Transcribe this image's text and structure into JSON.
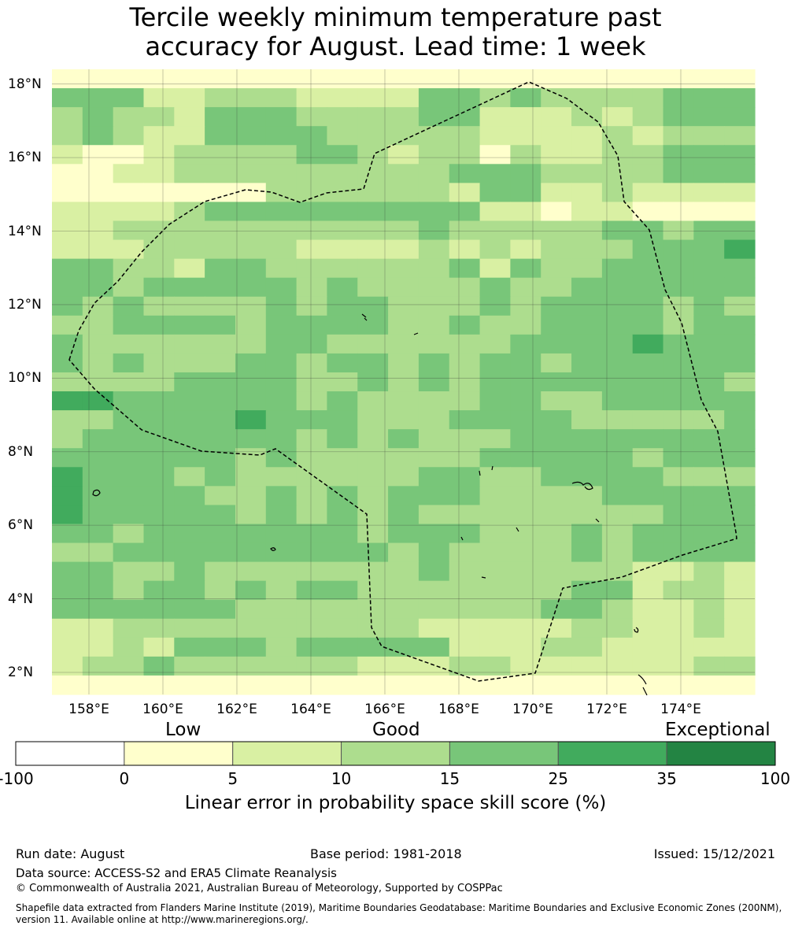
{
  "title": {
    "line1": "Tercile weekly minimum temperature past",
    "line2": "accuracy for August. Lead time: 1 week"
  },
  "map": {
    "lon_range": [
      157,
      176
    ],
    "lat_range": [
      1.4,
      18.4
    ],
    "lat_labels": [
      "18°N",
      "16°N",
      "14°N",
      "12°N",
      "10°N",
      "8°N",
      "6°N",
      "4°N",
      "2°N"
    ],
    "lat_values": [
      18,
      16,
      14,
      12,
      10,
      8,
      6,
      4,
      2
    ],
    "lon_labels": [
      "158°E",
      "160°E",
      "162°E",
      "164°E",
      "166°E",
      "168°E",
      "170°E",
      "172°E",
      "174°E"
    ],
    "lon_values": [
      158,
      160,
      162,
      164,
      166,
      168,
      170,
      172,
      174
    ],
    "grid_rows": [
      "00000000000000000000000",
      "33311222111133232222333",
      "23221333222233111212333",
      "23211333322222111121222",
      "10012222332122021122333",
      "00112222222223332222333",
      "00000002222221331121111",
      "11112333333333110110000",
      "11222222222232222233233",
      "11122222111121212223334",
      "33221332222223132233333",
      "33233333232222322333333",
      "32322223233222323333232",
      "22333323333223223333233",
      "32222223322222233334333",
      "32322233233232332333333",
      "22223333223232333333332",
      "44333333232222332233333",
      "22333343332223333222223",
      "23333333232322233333333",
      "33333323222222333332333",
      "43332322222233223333222",
      "43333223232333222233333",
      "43333323232322222222333",
      "33233333332333222323333",
      "22333333333232222323333",
      "33223222222232222221121",
      "33233232332222222331221",
      "33333322222222223321121",
      "11222222222211111221121",
      "11213332333331112211111",
      "12232222221112211111122",
      "00000000000000000000000"
    ],
    "colors": [
      "#ffffcc",
      "#d9f0a3",
      "#addd8e",
      "#78c679",
      "#41ab5d",
      "#238443"
    ]
  },
  "colorbar": {
    "category_low": "Low",
    "category_good": "Good",
    "category_exceptional": "Exceptional",
    "ticks": [
      "-100",
      "0",
      "5",
      "10",
      "15",
      "25",
      "35",
      "100"
    ],
    "bins": [
      "#ffffff",
      "#ffffcc",
      "#d9f0a3",
      "#addd8e",
      "#78c679",
      "#41ab5d",
      "#238443"
    ],
    "label": "Linear error in probability space skill score (%)"
  },
  "footer": {
    "run_date": "Run date: August",
    "base_period": "Base period: 1981-2018",
    "issued": "Issued: 15/12/2021",
    "data_source": "Data source: ACCESS-S2 and ERA5 Climate Reanalysis",
    "copyright": "© Commonwealth of Australia 2021, Australian Bureau of Meteorology, Supported by COSPPac",
    "shapefile": "Shapefile data extracted from Flanders Marine Institute (2019), Maritime Boundaries Geodatabase: Maritime Boundaries and Exclusive Economic Zones (200NM), version 11. Available online at http://www.marineregions.org/."
  }
}
